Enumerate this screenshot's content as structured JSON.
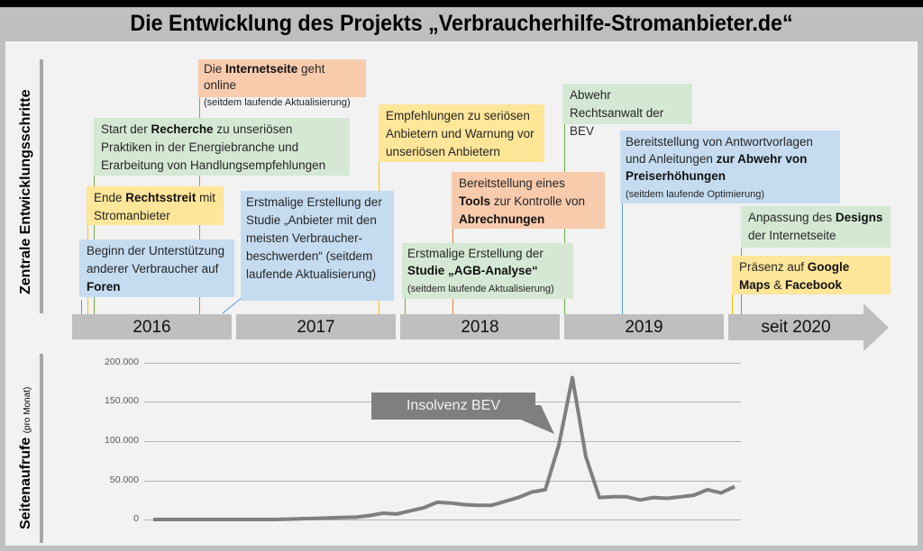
{
  "title": "Die Entwicklung des Projekts „Verbraucherhilfe-Stromanbieter.de“",
  "timeline": {
    "axis_label": "Zentrale Entwicklungsschritte",
    "years": [
      {
        "label": "2016"
      },
      {
        "label": "2017"
      },
      {
        "label": "2018"
      },
      {
        "label": "2019"
      },
      {
        "label": "seit 2020"
      }
    ],
    "events": [
      {
        "pre": "Die ",
        "bold": "Internetseite",
        "post": " geht online",
        "note": "(seitdem laufende Aktualisierung)",
        "color": "orange"
      },
      {
        "pre": "Start der ",
        "bold": "Recherche",
        "post": " zu unseriösen Praktiken in der Energiebranche und Erarbeitung von Handlungsempfehlungen",
        "color": "green"
      },
      {
        "pre": "Ende ",
        "bold": "Rechtsstreit",
        "post": " mit Stromanbieter",
        "color": "yellow"
      },
      {
        "pre": "Beginn der Unterstützung anderer Verbraucher auf ",
        "bold": "Foren",
        "post": "",
        "color": "blue"
      },
      {
        "text": "Erstmalige Erstellung der Studie „Anbieter mit den meisten Verbraucher-beschwerden“ (seitdem laufende Aktualisierung)",
        "color": "blue"
      },
      {
        "text": "Empfehlungen zu seriösen Anbietern und Warnung vor unseriösen Anbietern",
        "color": "yellow"
      },
      {
        "pre": "Bereitstellung eines ",
        "bold": "Tools",
        "post": " zur Kontrolle von ",
        "bold2": "Abrechnungen",
        "color": "orange"
      },
      {
        "pre": "Erstmalige Erstellung der ",
        "bold": "Studie „AGB-Analyse“",
        "note": "(seitdem laufende Aktualisierung)",
        "color": "green"
      },
      {
        "text": "Abwehr Rechtsanwalt der BEV",
        "color": "green"
      },
      {
        "pre": "Bereitstellung von Antwortvorlagen und Anleitungen ",
        "bold": "zur Abwehr von Preiserhöhungen",
        "note": "(seitdem laufende Optimierung)",
        "color": "blue"
      },
      {
        "pre": "Anpassung des ",
        "bold": "Designs",
        "post": " der Internetseite",
        "color": "green"
      },
      {
        "pre": "Präsenz auf ",
        "bold": "Google Maps",
        "post": " & ",
        "bold2": "Facebook",
        "color": "yellow"
      }
    ],
    "colors": {
      "green": "#d5e8d4",
      "orange": "#f8cbad",
      "yellow": "#ffe699",
      "blue": "#c5dcf0",
      "year_bar": "#bfbfbf"
    }
  },
  "chart": {
    "ylabel": "Seitenaufrufe",
    "ylabel_note": "(pro Monat)",
    "yticks": [
      "200.000",
      "150.000",
      "100.000",
      "50.000",
      "0"
    ],
    "callout": "Insolvenz BEV"
  },
  "chart_data": {
    "type": "line",
    "title": "",
    "xlabel": "",
    "ylabel": "Seitenaufrufe (pro Monat)",
    "ylim": [
      0,
      200000
    ],
    "grid": true,
    "annotations": [
      {
        "text": "Insolvenz BEV",
        "at_index": 31
      }
    ],
    "series": [
      {
        "name": "Seitenaufrufe",
        "values": [
          0,
          0,
          0,
          0,
          0,
          0,
          0,
          0,
          0,
          0,
          500,
          1000,
          1500,
          2000,
          2500,
          3000,
          5000,
          8000,
          7000,
          11000,
          15000,
          22000,
          21000,
          19000,
          18000,
          18000,
          23000,
          28000,
          35000,
          38000,
          95000,
          181000,
          80000,
          28000,
          29000,
          29000,
          25000,
          28000,
          27000,
          29000,
          31000,
          38000,
          34000,
          42000
        ]
      }
    ]
  }
}
